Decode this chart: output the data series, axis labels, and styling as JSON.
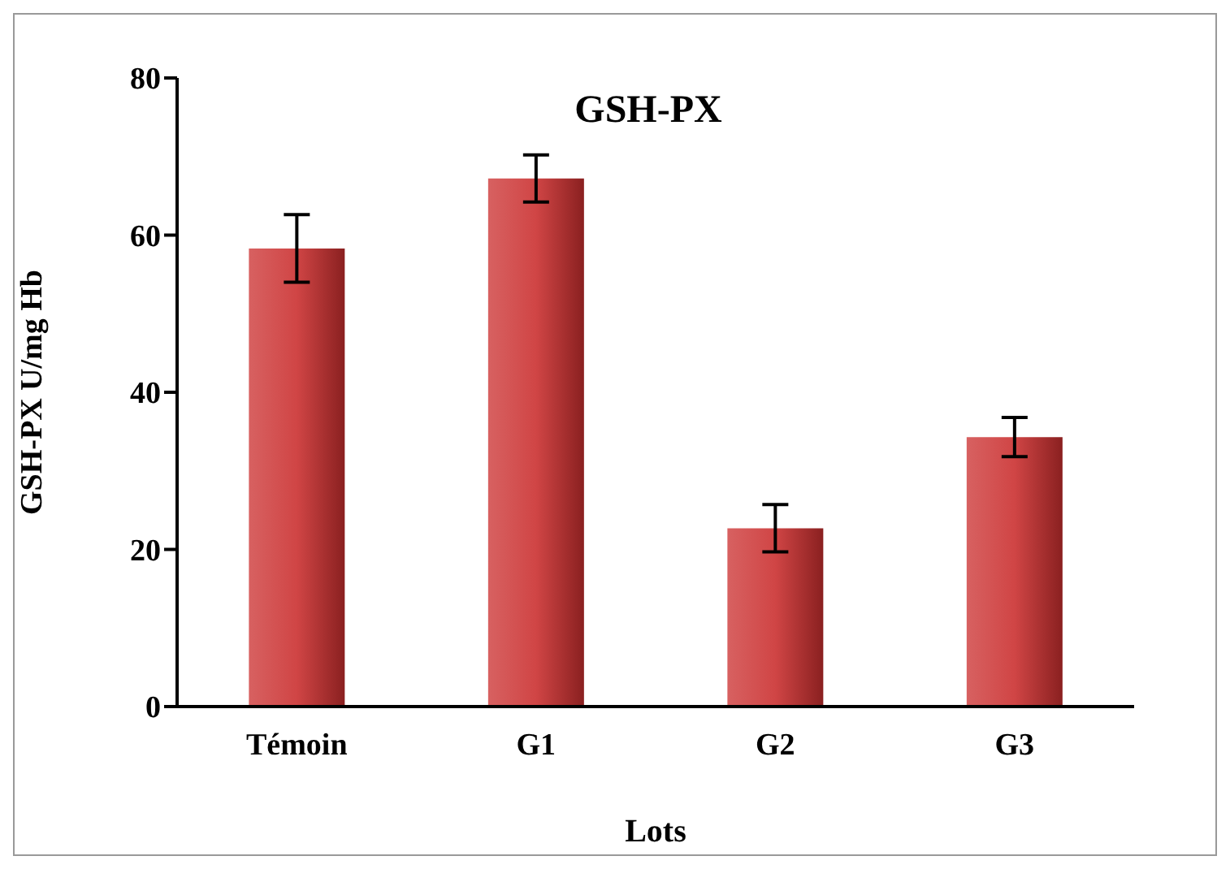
{
  "chart_data": {
    "type": "bar",
    "title": "GSH-PX",
    "xlabel": "Lots",
    "ylabel": "GSH-PX U/mg Hb",
    "categories": [
      "Témoin",
      "G1",
      "G2",
      "G3"
    ],
    "values": [
      58.3,
      67.2,
      22.7,
      34.3
    ],
    "errors": [
      4.3,
      3,
      3,
      2.5
    ],
    "color": "#d04545",
    "ylim": [
      0,
      80
    ],
    "yticks": [
      0,
      20,
      40,
      60,
      80
    ],
    "grid": false,
    "legend": false
  }
}
